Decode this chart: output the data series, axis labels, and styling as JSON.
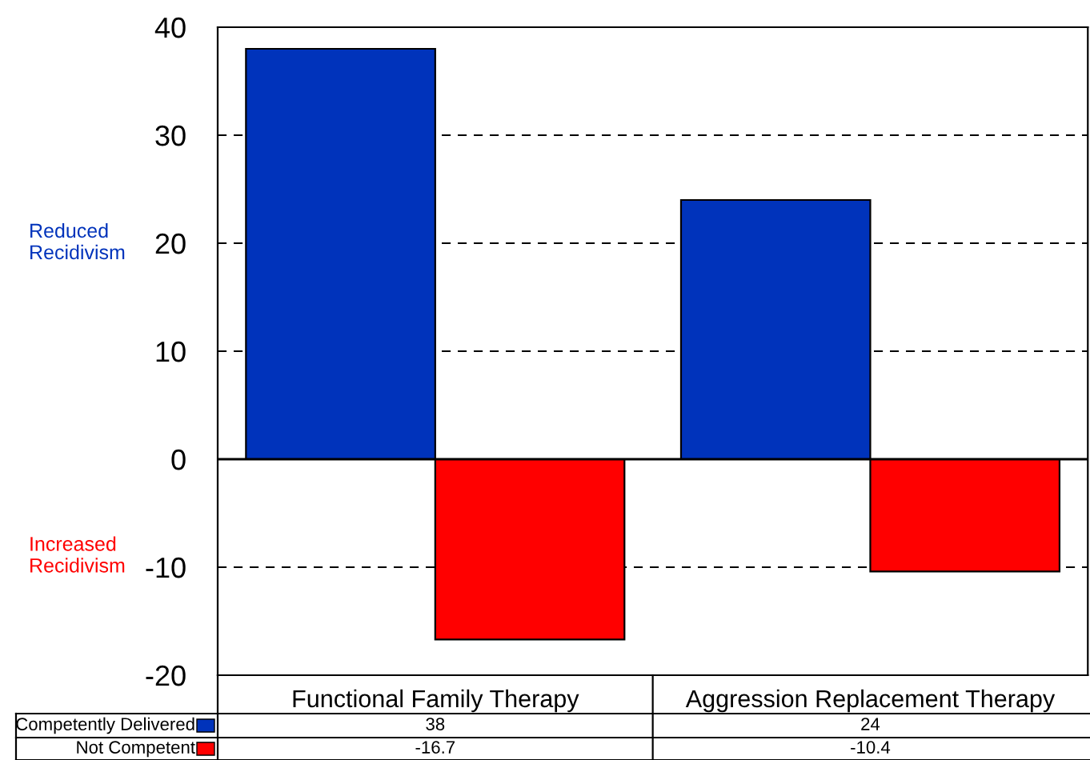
{
  "chart_data": {
    "type": "bar",
    "categories": [
      "Functional Family Therapy",
      "Aggression Replacement Therapy"
    ],
    "series": [
      {
        "name": "Competently Delivered",
        "color": "#0033bb",
        "values": [
          38,
          24
        ]
      },
      {
        "name": "Not Competent",
        "color": "#ff0000",
        "values": [
          -16.7,
          -10.4
        ]
      }
    ],
    "ylim": [
      -20,
      40
    ],
    "yticks": [
      -20,
      -10,
      0,
      10,
      20,
      30,
      40
    ],
    "grid": "y",
    "line_style": "dashed",
    "data_labels": true,
    "legend": "bottom left",
    "annotations": [
      "Reduced\nRecidivism",
      "Increased\nRecidivism"
    ]
  }
}
